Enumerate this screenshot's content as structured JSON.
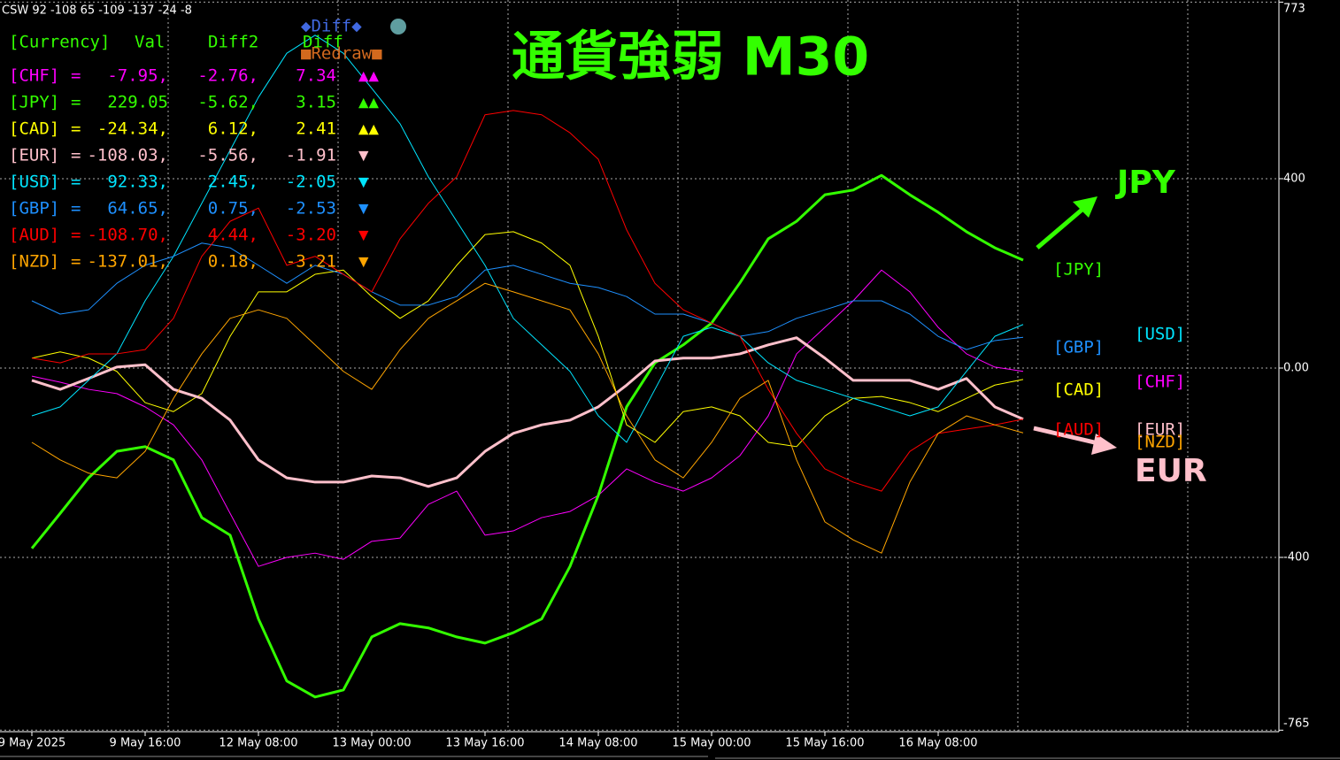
{
  "status": "CSW 92 -108 65 -109 -137 -24 -8",
  "table": {
    "header": [
      "[Currency]",
      "Val",
      "Diff2",
      "Diff"
    ],
    "sep": "=",
    "rows": [
      {
        "name": "[CHF]",
        "val": "-7.95,",
        "diff2": "-2.76,",
        "diff": "7.34",
        "signal": "▲▲"
      },
      {
        "name": "[JPY]",
        "val": "229.05",
        "diff2": "-5.62,",
        "diff": "3.15",
        "signal": "▲▲"
      },
      {
        "name": "[CAD]",
        "val": "-24.34,",
        "diff2": "6.12,",
        "diff": "2.41",
        "signal": "▲▲"
      },
      {
        "name": "[EUR]",
        "val": "-108.03,",
        "diff2": "-5.56,",
        "diff": "-1.91",
        "signal": "▼"
      },
      {
        "name": "[USD]",
        "val": "92.33,",
        "diff2": "2.45,",
        "diff": "-2.05",
        "signal": "▼"
      },
      {
        "name": "[GBP]",
        "val": "64.65,",
        "diff2": "0.75,",
        "diff": "-2.53",
        "signal": "▼"
      },
      {
        "name": "[AUD]",
        "val": "-108.70,",
        "diff2": "4.44,",
        "diff": "-3.20",
        "signal": "▼"
      },
      {
        "name": "[NZD]",
        "val": "-137.01,",
        "diff2": "0.18,",
        "diff": "-3.21",
        "signal": "▼"
      }
    ]
  },
  "buttons": {
    "diff": "◆Diff◆",
    "redraw": "■Redraw■"
  },
  "chart_data": {
    "type": "line",
    "title": "通貨強弱 M30",
    "categories": [
      "9 May 2025",
      null,
      null,
      null,
      "9 May 16:00",
      null,
      null,
      null,
      "12 May 08:00",
      null,
      null,
      null,
      "13 May 00:00",
      null,
      null,
      null,
      "13 May 16:00",
      null,
      null,
      null,
      "14 May 08:00",
      null,
      null,
      null,
      "15 May 00:00",
      null,
      null,
      null,
      "15 May 16:00",
      null,
      null,
      null,
      "16 May 08:00",
      null,
      null,
      null
    ],
    "ylim": [
      -765,
      773
    ],
    "yticks": [
      773,
      400,
      {
        "value": 0,
        "label": "0.00"
      },
      -400,
      -765
    ],
    "grid": true,
    "series": [
      {
        "name": "[CHF]",
        "color": "#ff00ff",
        "width": 1,
        "values": [
          -17,
          -30,
          -45,
          -54,
          -82,
          -120,
          -194,
          -307,
          -419,
          -400,
          -391,
          -404,
          -366,
          -359,
          -288,
          -260,
          -353,
          -344,
          -316,
          -303,
          -269,
          -213,
          -241,
          -260,
          -232,
          -185,
          -101,
          30,
          86,
          142,
          207,
          161,
          86,
          30,
          2,
          -7
        ]
      },
      {
        "name": "[JPY]",
        "color": "#33ff00",
        "width": 3,
        "values": [
          -381,
          -307,
          -232,
          -176,
          -166,
          -194,
          -316,
          -353,
          -530,
          -661,
          -695,
          -680,
          -568,
          -540,
          -549,
          -568,
          -581,
          -559,
          -530,
          -419,
          -269,
          -82,
          11,
          49,
          95,
          180,
          273,
          310,
          366,
          376,
          407,
          366,
          329,
          288,
          254,
          228
        ]
      },
      {
        "name": "[CAD]",
        "color": "#ffff00",
        "width": 1,
        "values": [
          21,
          34,
          21,
          -7,
          -73,
          -92,
          -54,
          67,
          161,
          161,
          198,
          207,
          151,
          105,
          142,
          217,
          282,
          288,
          264,
          217,
          67,
          -120,
          -157,
          -92,
          -82,
          -101,
          -157,
          -166,
          -101,
          -64,
          -60,
          -73,
          -92,
          -64,
          -36,
          -24
        ]
      },
      {
        "name": "[EUR]",
        "color": "#ffc0cb",
        "width": 3,
        "values": [
          -26,
          -45,
          -22,
          2,
          7,
          -45,
          -64,
          -110,
          -194,
          -232,
          -241,
          -241,
          -228,
          -232,
          -250,
          -232,
          -176,
          -138,
          -120,
          -110,
          -82,
          -36,
          15,
          21,
          21,
          30,
          49,
          64,
          21,
          -26,
          -26,
          -26,
          -45,
          -22,
          -82,
          -108
        ]
      },
      {
        "name": "[USD]",
        "color": "#00e5ff",
        "width": 1,
        "values": [
          -101,
          -82,
          -26,
          30,
          142,
          236,
          348,
          460,
          572,
          665,
          703,
          665,
          591,
          516,
          404,
          310,
          217,
          105,
          49,
          -7,
          -101,
          -157,
          -45,
          67,
          86,
          67,
          11,
          -26,
          -45,
          -64,
          -82,
          -101,
          -82,
          -7,
          67,
          92
        ]
      },
      {
        "name": "[GBP]",
        "color": "#1e90ff",
        "width": 1,
        "values": [
          142,
          114,
          123,
          179,
          217,
          236,
          264,
          254,
          217,
          179,
          217,
          198,
          161,
          133,
          133,
          151,
          207,
          217,
          198,
          179,
          170,
          151,
          114,
          114,
          95,
          67,
          77,
          105,
          123,
          142,
          142,
          114,
          67,
          39,
          58,
          65
        ]
      },
      {
        "name": "[AUD]",
        "color": "#ff0000",
        "width": 1,
        "values": [
          21,
          11,
          30,
          30,
          39,
          105,
          236,
          310,
          338,
          217,
          236,
          198,
          161,
          273,
          348,
          404,
          535,
          544,
          535,
          497,
          441,
          292,
          179,
          123,
          95,
          67,
          -45,
          -138,
          -213,
          -241,
          -260,
          -176,
          -138,
          -129,
          -120,
          -108
        ]
      },
      {
        "name": "[NZD]",
        "color": "#ffa500",
        "width": 1,
        "values": [
          -157,
          -194,
          -222,
          -232,
          -176,
          -64,
          30,
          105,
          123,
          105,
          49,
          -7,
          -45,
          39,
          105,
          142,
          179,
          161,
          142,
          123,
          30,
          -101,
          -194,
          -232,
          -157,
          -64,
          -26,
          -194,
          -325,
          -363,
          -391,
          -241,
          -138,
          -101,
          -120,
          -137
        ]
      }
    ],
    "annotations": [
      {
        "text": "JPY",
        "color": "#33ff00"
      },
      {
        "text": "EUR",
        "color": "#ffc0cb"
      }
    ]
  }
}
